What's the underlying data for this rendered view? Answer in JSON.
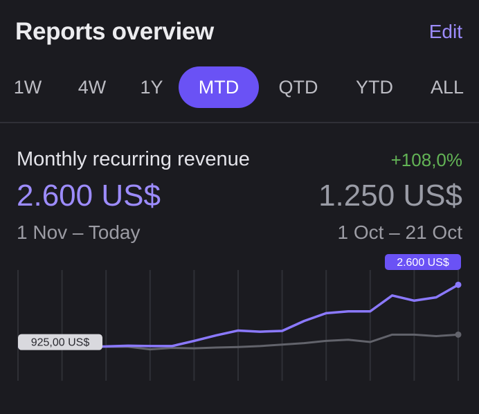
{
  "header": {
    "title": "Reports overview",
    "edit_label": "Edit"
  },
  "tabs": [
    {
      "label": "1W",
      "active": false
    },
    {
      "label": "4W",
      "active": false
    },
    {
      "label": "1Y",
      "active": false
    },
    {
      "label": "MTD",
      "active": true
    },
    {
      "label": "QTD",
      "active": false
    },
    {
      "label": "YTD",
      "active": false
    },
    {
      "label": "ALL",
      "active": false
    }
  ],
  "metric": {
    "title": "Monthly recurring revenue",
    "change": "+108,0%",
    "current_value": "2.600 US$",
    "previous_value": "1.250 US$",
    "current_period": "1 Nov – Today",
    "previous_period": "1 Oct – 21 Oct"
  },
  "colors": {
    "accent": "#6a52f5",
    "accent_text": "#9d8cff",
    "positive": "#63b456",
    "previous_line": "#62636b"
  },
  "chart_data": {
    "type": "line",
    "title": "Monthly recurring revenue",
    "xlabel": "",
    "ylabel": "",
    "ylim": [
      0,
      3000
    ],
    "grid": true,
    "x": [
      1,
      2,
      3,
      4,
      5,
      6,
      7,
      8,
      9,
      10,
      11,
      12,
      13,
      14,
      15,
      16,
      17,
      18,
      19,
      20,
      21
    ],
    "series": [
      {
        "name": "1 Nov – Today",
        "values": [
          925,
          915,
          915,
          925,
          930,
          950,
          940,
          940,
          1080,
          1230,
          1360,
          1330,
          1350,
          1620,
          1830,
          1880,
          1880,
          2310,
          2170,
          2260,
          2600
        ],
        "end_label": "2.600 US$"
      },
      {
        "name": "1 Oct – 21 Oct",
        "values": [
          925,
          920,
          920,
          920,
          920,
          920,
          850,
          890,
          880,
          900,
          915,
          940,
          980,
          1020,
          1080,
          1110,
          1050,
          1250,
          1250,
          1210,
          1250
        ],
        "start_label": "925,00 US$"
      }
    ]
  }
}
